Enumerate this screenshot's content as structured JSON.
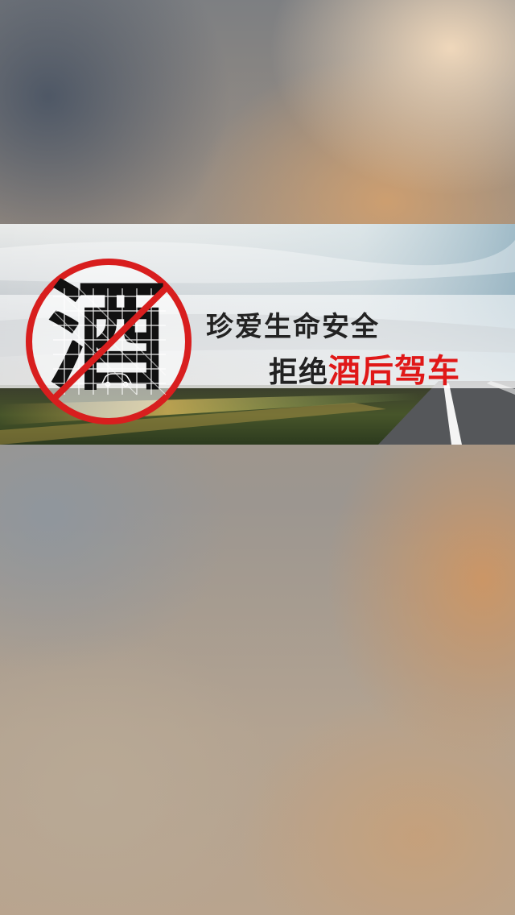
{
  "banner": {
    "sign_character": "酒",
    "slogan_line1": "珍爱生命安全",
    "slogan_line2_prefix": "拒绝",
    "slogan_line2_highlight": "酒后驾车"
  },
  "colors": {
    "prohibition_red": "#d81e1e",
    "highlight_text": "#e01818",
    "dark_text": "#222222"
  },
  "icons": {
    "sign": "no-drink-driving-sign",
    "car": "car-icon"
  }
}
